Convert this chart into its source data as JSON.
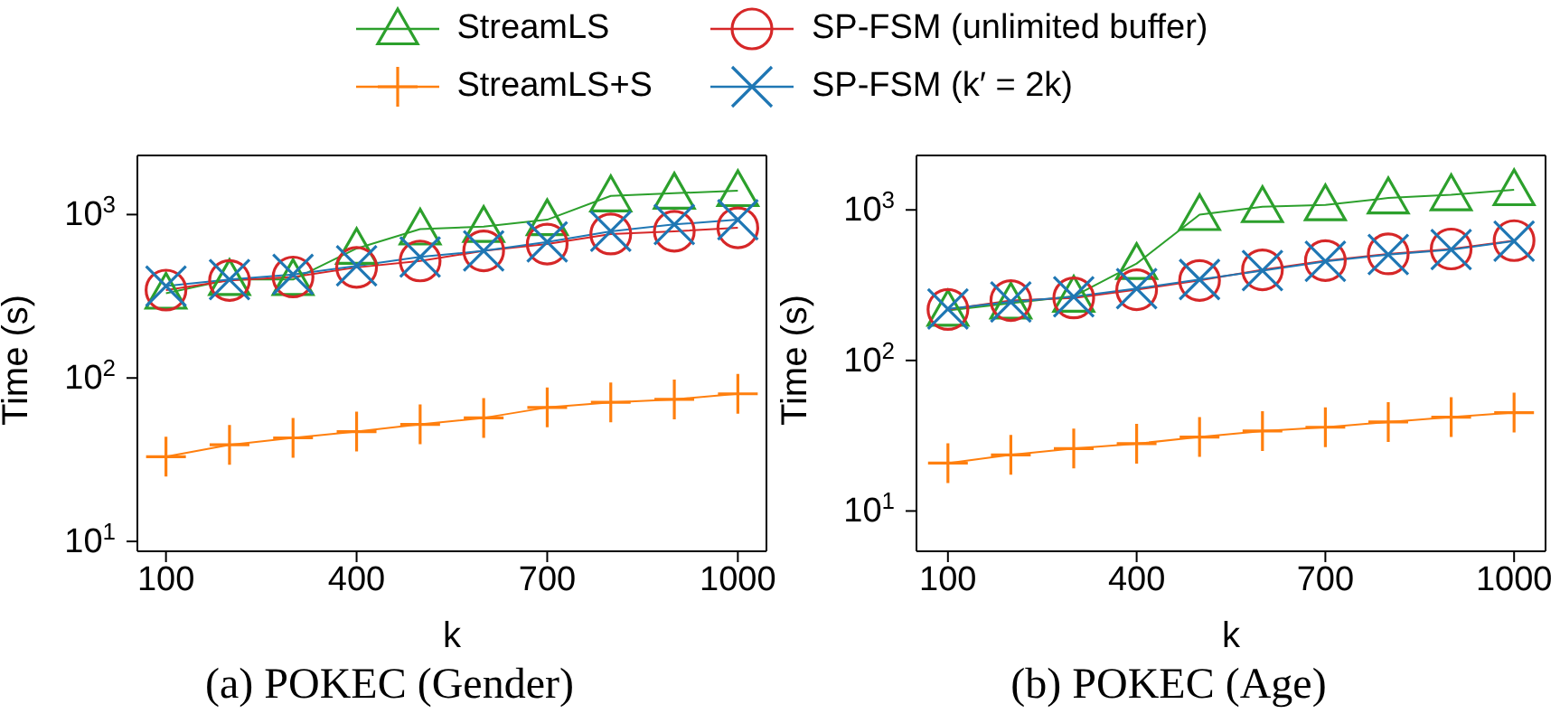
{
  "chart_data": [
    {
      "type": "line",
      "title": "(a) POKEC (Gender)",
      "xlabel": "k",
      "ylabel": "Time (s)",
      "log": "y",
      "legend": "top",
      "line_style": "solid",
      "x": [
        100,
        200,
        300,
        400,
        500,
        600,
        700,
        800,
        900,
        1000
      ],
      "xlim": [
        55,
        1045
      ],
      "xticks": [
        100,
        400,
        700,
        1000
      ],
      "ylim": [
        8.7,
        2300
      ],
      "yticks": [
        {
          "value": 10,
          "label": "10$^{1}$"
        },
        {
          "value": 100,
          "label": "10$^{2}$"
        },
        {
          "value": 1000,
          "label": "10$^{3}$"
        }
      ],
      "series": [
        {
          "name": "StreamLS",
          "color": "#2ca02c",
          "marker": "triangle",
          "values": [
            330,
            400,
            400,
            620,
            815,
            845,
            930,
            1300,
            1350,
            1400
          ]
        },
        {
          "name": "StreamLS+S",
          "color": "#ff7f0e",
          "marker": "cross",
          "values": [
            33,
            39,
            43,
            47,
            52,
            57,
            66,
            71,
            74,
            80
          ]
        },
        {
          "name": "SP-FSM (unlimited buffer)",
          "color": "#d62728",
          "marker": "circle",
          "values": [
            345,
            395,
            415,
            475,
            520,
            600,
            660,
            760,
            790,
            830
          ]
        },
        {
          "name": "SP-FSM (k′ = 2k)",
          "color": "#1f77b4",
          "marker": "cross",
          "values": [
            365,
            400,
            430,
            485,
            550,
            600,
            680,
            790,
            870,
            930
          ]
        }
      ]
    },
    {
      "type": "line",
      "title": "(b) POKEC (Age)",
      "xlabel": "k",
      "ylabel": "Time (s)",
      "log": "y",
      "line_style": "solid",
      "x": [
        100,
        200,
        300,
        400,
        500,
        600,
        700,
        800,
        900,
        1000
      ],
      "xlim": [
        50,
        1050
      ],
      "xticks": [
        100,
        400,
        700,
        1000
      ],
      "ylim": [
        5.4,
        2300
      ],
      "yticks": [
        {
          "value": 10,
          "label": "10$^{1}$"
        },
        {
          "value": 100,
          "label": "10$^{2}$"
        },
        {
          "value": 1000,
          "label": "10$^{3}$"
        }
      ],
      "series": [
        {
          "color": "#2ca02c",
          "marker": "triangle",
          "values": [
            215,
            240,
            267,
            440,
            930,
            1050,
            1080,
            1200,
            1260,
            1360
          ]
        },
        {
          "color": "#ff7f0e",
          "marker": "cross",
          "values": [
            20.8,
            23.6,
            26,
            28,
            31,
            34,
            36,
            39,
            42,
            45
          ]
        },
        {
          "color": "#d62728",
          "marker": "circle",
          "values": [
            218,
            250,
            260,
            295,
            340,
            400,
            460,
            510,
            550,
            625
          ]
        },
        {
          "color": "#1f77b4",
          "marker": "cross",
          "values": [
            220,
            245,
            265,
            300,
            345,
            395,
            455,
            505,
            545,
            620
          ]
        }
      ]
    }
  ]
}
